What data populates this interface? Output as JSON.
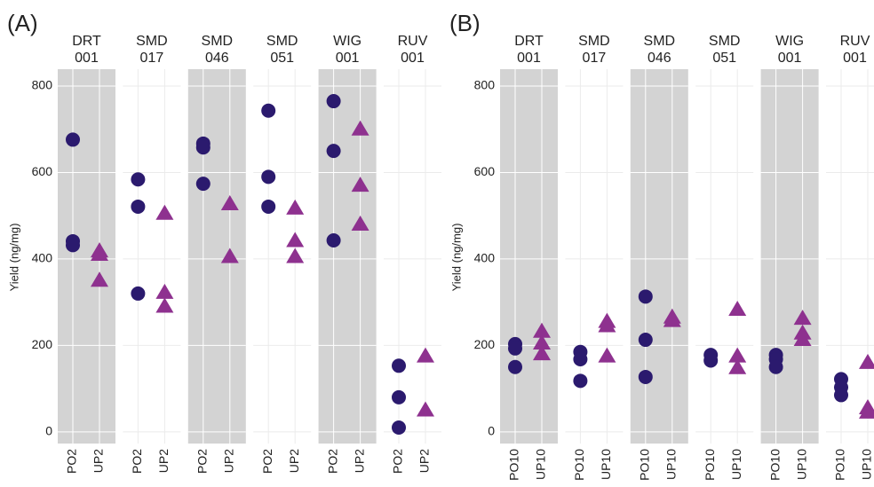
{
  "chart_data": [
    {
      "type": "strip",
      "panel_label": "(A)",
      "y_label": "Yield (ng/mg)",
      "ylim": [
        -27,
        839
      ],
      "yticks": [
        0,
        200,
        400,
        600,
        800
      ],
      "grid": true,
      "categories": [
        "PO2",
        "UP2"
      ],
      "colors": [
        "#2b1a6e",
        "#8e318f"
      ],
      "markers": [
        "circle",
        "triangle"
      ],
      "facets": [
        {
          "label": [
            "DRT",
            "001"
          ],
          "shaded": true,
          "values": [
            [
              676,
              441,
              432
            ],
            [
              418,
              410,
              350
            ]
          ]
        },
        {
          "label": [
            "SMD",
            "017"
          ],
          "shaded": false,
          "values": [
            [
              584,
              521,
              320
            ],
            [
              505,
              322,
              290
            ]
          ]
        },
        {
          "label": [
            "SMD",
            "046"
          ],
          "shaded": true,
          "values": [
            [
              667,
              658,
              574
            ],
            [
              527,
              405
            ]
          ]
        },
        {
          "label": [
            "SMD",
            "051"
          ],
          "shaded": false,
          "values": [
            [
              743,
              590,
              521
            ],
            [
              517,
              442,
              405
            ]
          ]
        },
        {
          "label": [
            "WIG",
            "001"
          ],
          "shaded": true,
          "values": [
            [
              765,
              650,
              443
            ],
            [
              700,
              570,
              480
            ]
          ]
        },
        {
          "label": [
            "RUV",
            "001"
          ],
          "shaded": false,
          "values": [
            [
              153,
              80,
              10
            ],
            [
              175,
              50
            ]
          ]
        }
      ]
    },
    {
      "type": "strip",
      "panel_label": "(B)",
      "y_label": "Yield (ng/mg)",
      "ylim": [
        -27,
        839
      ],
      "yticks": [
        0,
        200,
        400,
        600,
        800
      ],
      "grid": true,
      "categories": [
        "PO10",
        "UP10"
      ],
      "colors": [
        "#2b1a6e",
        "#8e318f"
      ],
      "markers": [
        "circle",
        "triangle"
      ],
      "facets": [
        {
          "label": [
            "DRT",
            "001"
          ],
          "shaded": true,
          "values": [
            [
              203,
              193,
              150
            ],
            [
              232,
              205,
              180
            ]
          ]
        },
        {
          "label": [
            "SMD",
            "017"
          ],
          "shaded": false,
          "values": [
            [
              185,
              168,
              118
            ],
            [
              255,
              245,
              175
            ]
          ]
        },
        {
          "label": [
            "SMD",
            "046"
          ],
          "shaded": true,
          "values": [
            [
              313,
              213,
              127
            ],
            [
              265,
              257
            ]
          ]
        },
        {
          "label": [
            "SMD",
            "051"
          ],
          "shaded": false,
          "values": [
            [
              178,
              165
            ],
            [
              283,
              175,
              148
            ]
          ]
        },
        {
          "label": [
            "WIG",
            "001"
          ],
          "shaded": true,
          "values": [
            [
              178,
              168,
              150
            ],
            [
              262,
              228,
              213
            ]
          ]
        },
        {
          "label": [
            "RUV",
            "001"
          ],
          "shaded": false,
          "values": [
            [
              122,
              103,
              85
            ],
            [
              160,
              55,
              45
            ]
          ]
        }
      ]
    }
  ]
}
